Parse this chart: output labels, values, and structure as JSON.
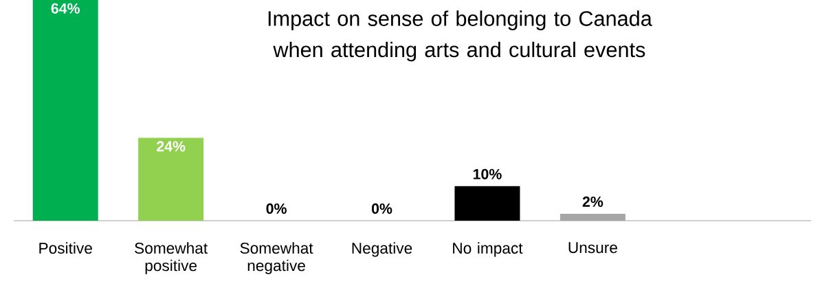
{
  "chart_data": {
    "type": "bar",
    "title": "Impact on sense of belonging to Canada when attending arts and cultural events",
    "categories": [
      "Positive",
      "Somewhat positive",
      "Somewhat negative",
      "Negative",
      "No impact",
      "Unsure"
    ],
    "values": [
      64,
      24,
      0,
      0,
      10,
      2
    ],
    "value_labels": [
      "64%",
      "24%",
      "0%",
      "0%",
      "10%",
      "2%"
    ],
    "colors": [
      "#00b050",
      "#92d050",
      "#ffc000",
      "#c00000",
      "#000000",
      "#a6a6a6"
    ]
  }
}
